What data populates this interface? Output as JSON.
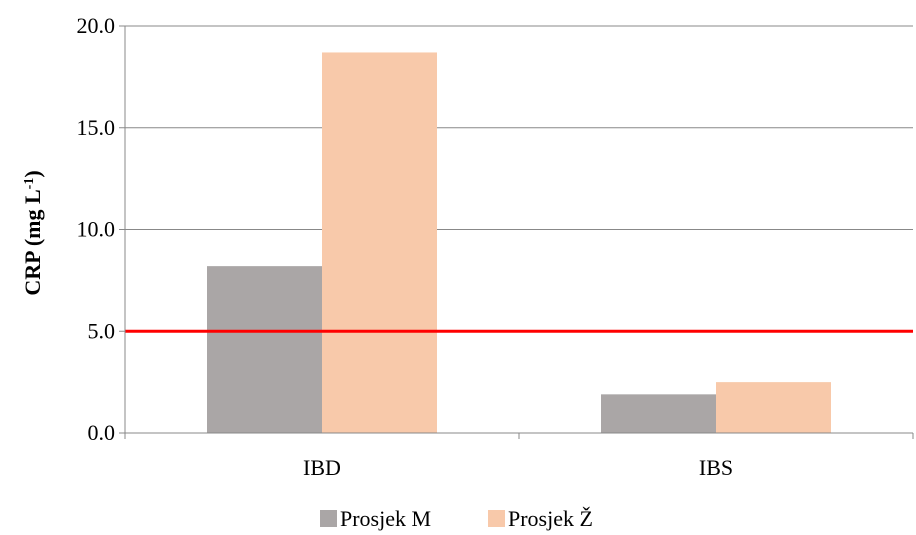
{
  "chart_data": {
    "type": "bar",
    "categories": [
      "IBD",
      "IBS"
    ],
    "series": [
      {
        "name": "Prosjek M",
        "values": [
          8.2,
          1.9
        ],
        "color": "#aaa6a6"
      },
      {
        "name": "Prosjek Ž",
        "values": [
          18.7,
          2.5
        ],
        "color": "#f8c9aa"
      }
    ],
    "ylabel": "CRP (mg L-1)",
    "ylabel_parts": {
      "main": "CRP (mg L",
      "sup": "-1",
      "close": ")"
    },
    "ylim": [
      0,
      20
    ],
    "yticks": [
      "0.0",
      "5.0",
      "10.0",
      "15.0",
      "20.0"
    ],
    "ytick_values": [
      0,
      5,
      10,
      15,
      20
    ],
    "reference_line": {
      "value": 5,
      "color": "#ff0000"
    },
    "grid": true,
    "legend_position": "bottom",
    "gridline_color": "#888888"
  }
}
